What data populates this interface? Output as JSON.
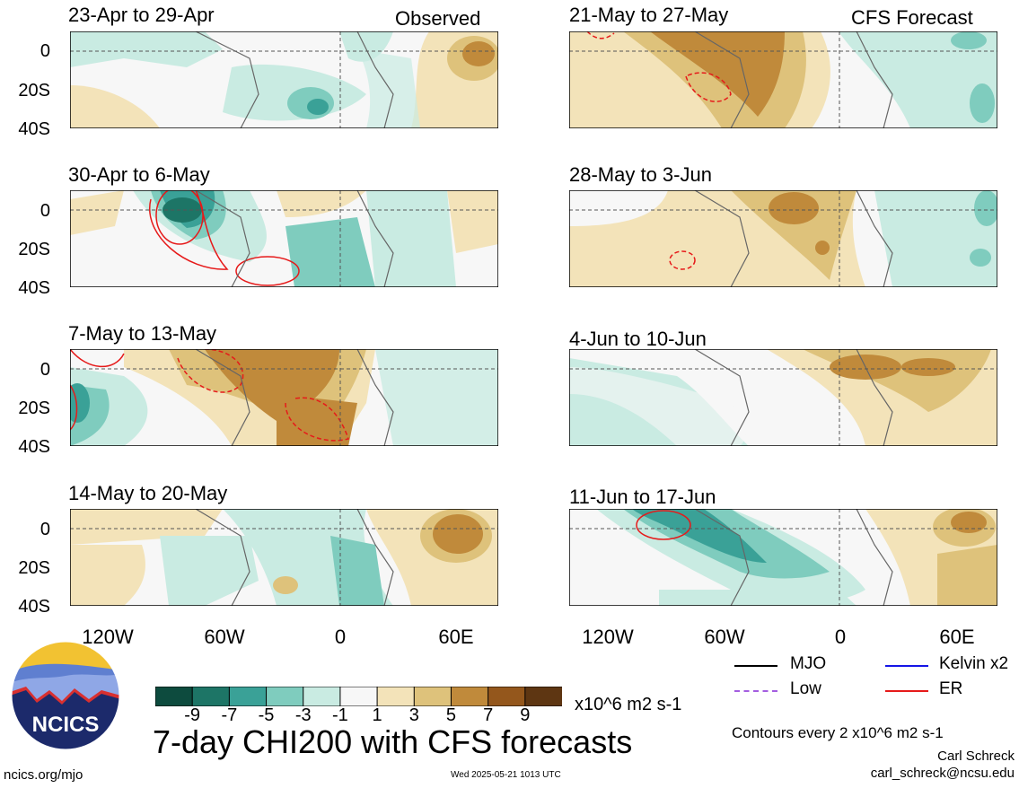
{
  "header": {
    "left_tag": "Observed",
    "right_tag": "CFS Forecast"
  },
  "panels": [
    {
      "title": "23-Apr to 29-Apr",
      "column": "observed"
    },
    {
      "title": "30-Apr to 6-May",
      "column": "observed"
    },
    {
      "title": "7-May to 13-May",
      "column": "observed"
    },
    {
      "title": "14-May to 20-May",
      "column": "observed"
    },
    {
      "title": "21-May to 27-May",
      "column": "forecast"
    },
    {
      "title": "28-May to 3-Jun",
      "column": "forecast"
    },
    {
      "title": "4-Jun to 10-Jun",
      "column": "forecast"
    },
    {
      "title": "11-Jun to 17-Jun",
      "column": "forecast"
    }
  ],
  "lat_labels": [
    "0",
    "20S",
    "40S"
  ],
  "lon_labels": [
    "120W",
    "60W",
    "0",
    "60E"
  ],
  "colorbar": {
    "colors": [
      "#0d4b3e",
      "#1d7566",
      "#3aa197",
      "#7fccbe",
      "#c9ebe2",
      "#f7f7f7",
      "#f3e3b9",
      "#dec27b",
      "#c08a3b",
      "#94571c",
      "#5e3612"
    ],
    "ticks": [
      "-9",
      "-7",
      "-5",
      "-3",
      "-1",
      "1",
      "3",
      "5",
      "7",
      "9"
    ],
    "units": "x10^6 m2 s-1"
  },
  "main_title": "7-day CHI200 with CFS forecasts",
  "legend": {
    "items": [
      {
        "label": "MJO",
        "color": "#000000"
      },
      {
        "label": "Kelvin x2",
        "color": "#1515e6"
      },
      {
        "label": "Low",
        "color": "#a45ee0"
      },
      {
        "label": "ER",
        "color": "#e61a1a"
      }
    ],
    "contour_note": "Contours every 2 x10^6 m2 s-1"
  },
  "credits": {
    "author": "Carl Schreck",
    "email": "carl_schreck@ncsu.edu",
    "site": "ncics.org/mjo",
    "timestamp": "Wed 2025-05-21 1013 UTC",
    "logo_text": "NCICS"
  }
}
